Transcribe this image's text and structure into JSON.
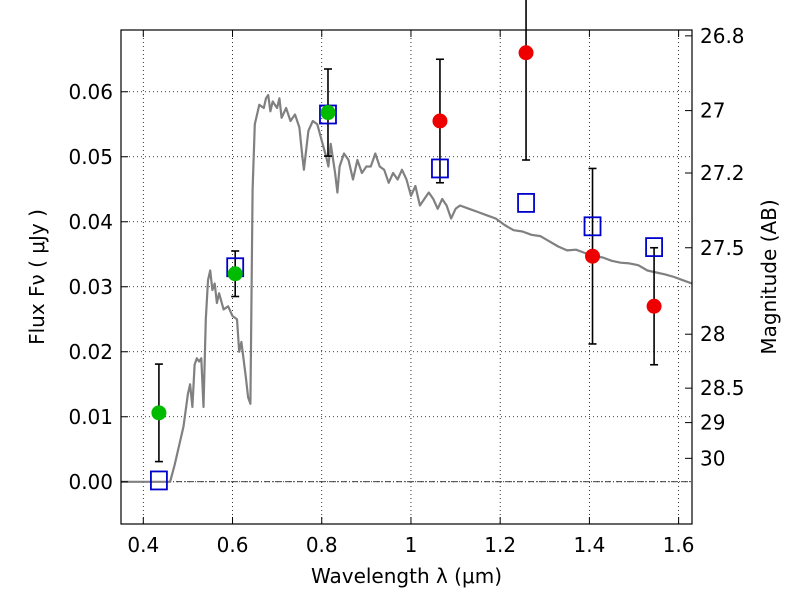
{
  "chart_data": {
    "type": "scatter",
    "title": "",
    "xlabel": "Wavelength  λ (μm)",
    "ylabel": "Flux  Fν  ( μJy )",
    "y2label": "Magnitude (AB)",
    "xlim": [
      0.35,
      1.63
    ],
    "ylim": [
      -0.0065,
      0.0695
    ],
    "grid": true,
    "x_ticks": [
      {
        "value": 0.4,
        "label": "0.4"
      },
      {
        "value": 0.6,
        "label": "0.6"
      },
      {
        "value": 0.8,
        "label": "0.8"
      },
      {
        "value": 1.0,
        "label": "1"
      },
      {
        "value": 1.2,
        "label": "1.2"
      },
      {
        "value": 1.4,
        "label": "1.4"
      },
      {
        "value": 1.6,
        "label": "1.6"
      }
    ],
    "y_ticks": [
      {
        "value": 0.0,
        "label": "0.00"
      },
      {
        "value": 0.01,
        "label": "0.01"
      },
      {
        "value": 0.02,
        "label": "0.02"
      },
      {
        "value": 0.03,
        "label": "0.03"
      },
      {
        "value": 0.04,
        "label": "0.04"
      },
      {
        "value": 0.05,
        "label": "0.05"
      },
      {
        "value": 0.06,
        "label": "0.06"
      }
    ],
    "y2_ticks": [
      {
        "label": "26.8",
        "flux": 0.0686
      },
      {
        "label": "27",
        "flux": 0.0571
      },
      {
        "label": "27.2",
        "flux": 0.0475
      },
      {
        "label": "27.5",
        "flux": 0.036
      },
      {
        "label": "28",
        "flux": 0.0227
      },
      {
        "label": "28.5",
        "flux": 0.0144
      },
      {
        "label": "29",
        "flux": 0.0091
      },
      {
        "label": "30",
        "flux": 0.0036
      }
    ],
    "zero_line": 0.0,
    "model_color": "#808080",
    "model_spectrum": [
      [
        0.35,
        0.0
      ],
      [
        0.46,
        0.0
      ],
      [
        0.47,
        0.0025
      ],
      [
        0.49,
        0.0085
      ],
      [
        0.5,
        0.0135
      ],
      [
        0.505,
        0.015
      ],
      [
        0.51,
        0.0115
      ],
      [
        0.515,
        0.018
      ],
      [
        0.52,
        0.019
      ],
      [
        0.525,
        0.0185
      ],
      [
        0.53,
        0.019
      ],
      [
        0.535,
        0.0115
      ],
      [
        0.54,
        0.025
      ],
      [
        0.545,
        0.031
      ],
      [
        0.55,
        0.0325
      ],
      [
        0.555,
        0.0295
      ],
      [
        0.56,
        0.0305
      ],
      [
        0.565,
        0.0275
      ],
      [
        0.57,
        0.029
      ],
      [
        0.58,
        0.0265
      ],
      [
        0.59,
        0.027
      ],
      [
        0.6,
        0.0255
      ],
      [
        0.61,
        0.025
      ],
      [
        0.615,
        0.02
      ],
      [
        0.62,
        0.0215
      ],
      [
        0.63,
        0.016
      ],
      [
        0.635,
        0.013
      ],
      [
        0.64,
        0.012
      ],
      [
        0.645,
        0.045
      ],
      [
        0.65,
        0.055
      ],
      [
        0.66,
        0.058
      ],
      [
        0.67,
        0.0575
      ],
      [
        0.675,
        0.059
      ],
      [
        0.68,
        0.0595
      ],
      [
        0.685,
        0.057
      ],
      [
        0.69,
        0.0585
      ],
      [
        0.7,
        0.0575
      ],
      [
        0.705,
        0.059
      ],
      [
        0.71,
        0.056
      ],
      [
        0.72,
        0.0575
      ],
      [
        0.73,
        0.0555
      ],
      [
        0.74,
        0.0565
      ],
      [
        0.75,
        0.0545
      ],
      [
        0.755,
        0.051
      ],
      [
        0.76,
        0.048
      ],
      [
        0.77,
        0.054
      ],
      [
        0.78,
        0.0555
      ],
      [
        0.79,
        0.055
      ],
      [
        0.8,
        0.0525
      ],
      [
        0.81,
        0.05
      ],
      [
        0.815,
        0.0485
      ],
      [
        0.82,
        0.052
      ],
      [
        0.83,
        0.0475
      ],
      [
        0.835,
        0.0445
      ],
      [
        0.84,
        0.0485
      ],
      [
        0.85,
        0.0505
      ],
      [
        0.86,
        0.0495
      ],
      [
        0.87,
        0.0465
      ],
      [
        0.88,
        0.0495
      ],
      [
        0.89,
        0.0475
      ],
      [
        0.9,
        0.0485
      ],
      [
        0.91,
        0.0485
      ],
      [
        0.92,
        0.0505
      ],
      [
        0.93,
        0.0485
      ],
      [
        0.94,
        0.048
      ],
      [
        0.95,
        0.046
      ],
      [
        0.96,
        0.0475
      ],
      [
        0.97,
        0.0465
      ],
      [
        0.98,
        0.048
      ],
      [
        0.99,
        0.0465
      ],
      [
        1.0,
        0.044
      ],
      [
        1.01,
        0.0455
      ],
      [
        1.02,
        0.0425
      ],
      [
        1.03,
        0.0435
      ],
      [
        1.04,
        0.0445
      ],
      [
        1.05,
        0.0435
      ],
      [
        1.06,
        0.042
      ],
      [
        1.07,
        0.0435
      ],
      [
        1.08,
        0.0425
      ],
      [
        1.09,
        0.0405
      ],
      [
        1.1,
        0.042
      ],
      [
        1.11,
        0.0425
      ],
      [
        1.13,
        0.042
      ],
      [
        1.15,
        0.0415
      ],
      [
        1.17,
        0.041
      ],
      [
        1.19,
        0.0405
      ],
      [
        1.21,
        0.0395
      ],
      [
        1.23,
        0.0387
      ],
      [
        1.25,
        0.0385
      ],
      [
        1.27,
        0.038
      ],
      [
        1.29,
        0.0378
      ],
      [
        1.31,
        0.037
      ],
      [
        1.33,
        0.0362
      ],
      [
        1.35,
        0.0356
      ],
      [
        1.37,
        0.0357
      ],
      [
        1.39,
        0.0352
      ],
      [
        1.41,
        0.0347
      ],
      [
        1.43,
        0.0345
      ],
      [
        1.45,
        0.034
      ],
      [
        1.47,
        0.0337
      ],
      [
        1.49,
        0.0336
      ],
      [
        1.51,
        0.0333
      ],
      [
        1.53,
        0.0325
      ],
      [
        1.55,
        0.0322
      ],
      [
        1.57,
        0.0319
      ],
      [
        1.59,
        0.0315
      ],
      [
        1.61,
        0.031
      ],
      [
        1.63,
        0.0305
      ]
    ],
    "green_points": [
      {
        "x": 0.435,
        "y": 0.0106,
        "err": 0.0075
      },
      {
        "x": 0.606,
        "y": 0.032,
        "err": 0.0035
      },
      {
        "x": 0.814,
        "y": 0.0568,
        "err": 0.0067
      }
    ],
    "red_points": [
      {
        "x": 1.065,
        "y": 0.0555,
        "err": 0.0095
      },
      {
        "x": 1.258,
        "y": 0.066,
        "err": 0.0165
      },
      {
        "x": 1.407,
        "y": 0.0347,
        "err": 0.0135
      },
      {
        "x": 1.545,
        "y": 0.027,
        "err": 0.009
      }
    ],
    "model_points": [
      {
        "x": 0.435,
        "y": 0.0002
      },
      {
        "x": 0.606,
        "y": 0.033
      },
      {
        "x": 0.814,
        "y": 0.0565
      },
      {
        "x": 1.065,
        "y": 0.0482
      },
      {
        "x": 1.258,
        "y": 0.0429
      },
      {
        "x": 1.407,
        "y": 0.0393
      },
      {
        "x": 1.545,
        "y": 0.0361
      }
    ],
    "colors": {
      "green": "#00bb00",
      "red": "#ee0000",
      "box": "#0000cc",
      "error_bar": "#000000"
    }
  }
}
